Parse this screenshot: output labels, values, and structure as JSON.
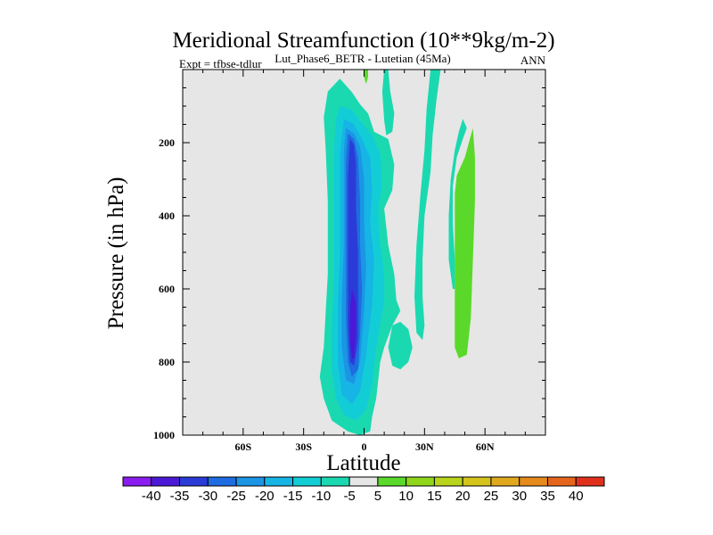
{
  "chart_data": {
    "type": "contour",
    "title": "Meridional Streamfunction (10**9kg/m-2)",
    "left_label": "Expt = tfbse-tdlur",
    "center_label": "Lut_Phase6_BETR - Lutetian (45Ma)",
    "right_label": "ANN",
    "xlabel": "Latitude",
    "ylabel": "Pressure (in hPa)",
    "xlim": [
      -90,
      90
    ],
    "ylim": [
      0,
      1000
    ],
    "y_inverted": true,
    "x_ticks": [
      {
        "value": -60,
        "label": "60S"
      },
      {
        "value": -30,
        "label": "30S"
      },
      {
        "value": 0,
        "label": "0"
      },
      {
        "value": 30,
        "label": "30N"
      },
      {
        "value": 60,
        "label": "60N"
      }
    ],
    "y_ticks": [
      {
        "value": 200,
        "label": "200"
      },
      {
        "value": 400,
        "label": "400"
      },
      {
        "value": 600,
        "label": "600"
      },
      {
        "value": 800,
        "label": "800"
      },
      {
        "value": 1000,
        "label": "1000"
      }
    ],
    "contour_levels": [
      -40,
      -35,
      -30,
      -25,
      -20,
      -15,
      -10,
      -5,
      5,
      10,
      15,
      20,
      25,
      30,
      35,
      40
    ],
    "colorbar_colors": [
      "#8a1cf0",
      "#4b18d6",
      "#2b3bd8",
      "#1f6be0",
      "#1b95e4",
      "#17b4e6",
      "#12cdd6",
      "#1ad9b0",
      "#e6e6e6",
      "#5ad92a",
      "#8fd61a",
      "#b8d41c",
      "#d4c41c",
      "#e0a81c",
      "#e68a1c",
      "#e6651c",
      "#e0301c"
    ],
    "background_color": "#e6e6e6",
    "regions": [
      {
        "name": "negative-outer",
        "level": "-5",
        "color": "#1ad9b0",
        "points": [
          [
            -18,
            60
          ],
          [
            -12,
            25
          ],
          [
            -6,
            62
          ],
          [
            -2,
            95
          ],
          [
            2,
            120
          ],
          [
            5,
            170
          ],
          [
            12,
            190
          ],
          [
            15,
            260
          ],
          [
            14,
            330
          ],
          [
            10,
            380
          ],
          [
            12,
            480
          ],
          [
            15,
            560
          ],
          [
            16,
            630
          ],
          [
            18,
            660
          ],
          [
            14,
            700
          ],
          [
            10,
            760
          ],
          [
            8,
            800
          ],
          [
            6,
            900
          ],
          [
            4,
            950
          ],
          [
            3,
            990
          ],
          [
            -2,
            1000
          ],
          [
            -8,
            990
          ],
          [
            -16,
            960
          ],
          [
            -20,
            900
          ],
          [
            -22,
            840
          ],
          [
            -20,
            760
          ],
          [
            -19,
            660
          ],
          [
            -18,
            560
          ],
          [
            -18,
            460
          ],
          [
            -18,
            360
          ],
          [
            -19,
            220
          ],
          [
            -20,
            130
          ]
        ]
      },
      {
        "name": "negative-outer-tail",
        "level": "-5",
        "color": "#1ad9b0",
        "points": [
          [
            14,
            700
          ],
          [
            18,
            690
          ],
          [
            22,
            710
          ],
          [
            24,
            760
          ],
          [
            22,
            800
          ],
          [
            18,
            820
          ],
          [
            14,
            810
          ],
          [
            12,
            760
          ]
        ]
      },
      {
        "name": "negative-level-10",
        "level": "-10",
        "color": "#12cdd6",
        "points": [
          [
            -12,
            100
          ],
          [
            -6,
            110
          ],
          [
            -2,
            140
          ],
          [
            4,
            180
          ],
          [
            8,
            230
          ],
          [
            9,
            320
          ],
          [
            7,
            380
          ],
          [
            8,
            480
          ],
          [
            10,
            560
          ],
          [
            10,
            640
          ],
          [
            6,
            760
          ],
          [
            4,
            860
          ],
          [
            1,
            930
          ],
          [
            -4,
            960
          ],
          [
            -10,
            945
          ],
          [
            -14,
            900
          ],
          [
            -16,
            820
          ],
          [
            -16,
            700
          ],
          [
            -15,
            580
          ],
          [
            -15,
            460
          ],
          [
            -15,
            340
          ],
          [
            -15,
            220
          ],
          [
            -14,
            140
          ]
        ]
      },
      {
        "name": "negative-level-15",
        "level": "-15",
        "color": "#17b4e6",
        "points": [
          [
            -10,
            135
          ],
          [
            -5,
            150
          ],
          [
            -1,
            190
          ],
          [
            3,
            240
          ],
          [
            4,
            330
          ],
          [
            3,
            420
          ],
          [
            5,
            520
          ],
          [
            4,
            640
          ],
          [
            1,
            780
          ],
          [
            -2,
            880
          ],
          [
            -6,
            915
          ],
          [
            -11,
            890
          ],
          [
            -13,
            800
          ],
          [
            -13,
            640
          ],
          [
            -12,
            500
          ],
          [
            -12,
            360
          ],
          [
            -12,
            230
          ]
        ]
      },
      {
        "name": "negative-level-20",
        "level": "-20",
        "color": "#1b95e4",
        "points": [
          [
            -9,
            160
          ],
          [
            -5,
            175
          ],
          [
            -2,
            210
          ],
          [
            0,
            300
          ],
          [
            0,
            420
          ],
          [
            1,
            540
          ],
          [
            0,
            660
          ],
          [
            -2,
            800
          ],
          [
            -5,
            860
          ],
          [
            -9,
            850
          ],
          [
            -11,
            760
          ],
          [
            -11,
            620
          ],
          [
            -10,
            480
          ],
          [
            -10,
            330
          ],
          [
            -10,
            220
          ]
        ]
      },
      {
        "name": "negative-level-25",
        "level": "-25",
        "color": "#1f6be0",
        "points": [
          [
            -8,
            175
          ],
          [
            -5,
            190
          ],
          [
            -3,
            240
          ],
          [
            -2,
            360
          ],
          [
            -2,
            480
          ],
          [
            -1,
            600
          ],
          [
            -2,
            720
          ],
          [
            -3,
            820
          ],
          [
            -6,
            840
          ],
          [
            -8,
            800
          ],
          [
            -9,
            680
          ],
          [
            -9,
            520
          ],
          [
            -9,
            380
          ],
          [
            -9,
            250
          ]
        ]
      },
      {
        "name": "negative-level-30",
        "level": "-30",
        "color": "#2b3bd8",
        "points": [
          [
            -7,
            190
          ],
          [
            -5,
            205
          ],
          [
            -4,
            260
          ],
          [
            -4,
            380
          ],
          [
            -3,
            500
          ],
          [
            -3,
            620
          ],
          [
            -3,
            740
          ],
          [
            -5,
            810
          ],
          [
            -7,
            800
          ],
          [
            -8,
            700
          ],
          [
            -8,
            560
          ],
          [
            -8,
            420
          ],
          [
            -8,
            290
          ]
        ]
      },
      {
        "name": "negative-level-35",
        "level": "-35",
        "color": "#4b18d6",
        "points": [
          [
            -6,
            600
          ],
          [
            -4,
            640
          ],
          [
            -4,
            720
          ],
          [
            -5,
            790
          ],
          [
            -6,
            790
          ],
          [
            -7,
            740
          ],
          [
            -7,
            660
          ]
        ]
      },
      {
        "name": "positive-strip-right",
        "level": "5",
        "color": "#5ad92a",
        "points": [
          [
            46,
            290
          ],
          [
            50,
            240
          ],
          [
            52,
            200
          ],
          [
            54,
            160
          ],
          [
            55,
            240
          ],
          [
            55,
            360
          ],
          [
            54,
            520
          ],
          [
            53,
            680
          ],
          [
            51,
            780
          ],
          [
            47,
            790
          ],
          [
            45,
            760
          ],
          [
            45,
            600
          ],
          [
            45,
            440
          ],
          [
            45,
            340
          ]
        ]
      },
      {
        "name": "positive-strip-top",
        "level": "5",
        "color": "#5ad92a",
        "points": [
          [
            0,
            0
          ],
          [
            2,
            0
          ],
          [
            2,
            20
          ],
          [
            1,
            40
          ],
          [
            0,
            20
          ]
        ]
      },
      {
        "name": "negative-strip-mid",
        "level": "-5",
        "color": "#1ad9b0",
        "points": [
          [
            10,
            0
          ],
          [
            12,
            0
          ],
          [
            13,
            60
          ],
          [
            15,
            120
          ],
          [
            14,
            170
          ],
          [
            11,
            180
          ],
          [
            10,
            140
          ],
          [
            9,
            60
          ]
        ]
      },
      {
        "name": "negative-strip-right",
        "level": "-5",
        "color": "#1ad9b0",
        "points": [
          [
            33,
            0
          ],
          [
            38,
            0
          ],
          [
            36,
            80
          ],
          [
            34,
            180
          ],
          [
            33,
            280
          ],
          [
            30,
            400
          ],
          [
            29,
            520
          ],
          [
            29,
            620
          ],
          [
            30,
            700
          ],
          [
            29,
            740
          ],
          [
            26,
            720
          ],
          [
            25,
            620
          ],
          [
            26,
            480
          ],
          [
            28,
            340
          ],
          [
            30,
            220
          ],
          [
            31,
            110
          ]
        ]
      },
      {
        "name": "negative-strip-far",
        "level": "-5",
        "color": "#1ad9b0",
        "points": [
          [
            49,
            135
          ],
          [
            51,
            160
          ],
          [
            49,
            190
          ],
          [
            46,
            240
          ],
          [
            44,
            320
          ],
          [
            44,
            420
          ],
          [
            45,
            520
          ],
          [
            45,
            600
          ],
          [
            44,
            600
          ],
          [
            42,
            520
          ],
          [
            42,
            400
          ],
          [
            43,
            300
          ],
          [
            45,
            220
          ],
          [
            47,
            170
          ]
        ]
      }
    ]
  }
}
